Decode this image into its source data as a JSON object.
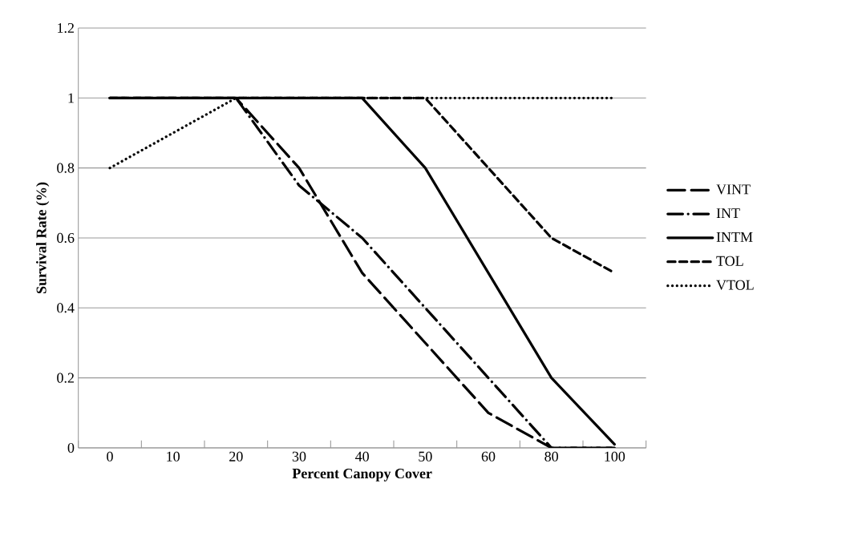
{
  "chart_data": {
    "type": "line",
    "xlabel": "Percent Canopy Cover",
    "ylabel": "Survival Rate (%)",
    "categories": [
      "0",
      "10",
      "20",
      "30",
      "40",
      "50",
      "60",
      "80",
      "100"
    ],
    "series": [
      {
        "name": "VINT",
        "color": "#000000",
        "line_style": "longdash",
        "values": [
          1,
          1,
          1,
          0.8,
          0.5,
          0.3,
          0.1,
          0,
          0
        ]
      },
      {
        "name": "INT",
        "color": "#000000",
        "line_style": "dashdot",
        "values": [
          1,
          1,
          1,
          0.75,
          0.6,
          0.4,
          0.2,
          0,
          0
        ]
      },
      {
        "name": "INTM",
        "color": "#000000",
        "line_style": "solid",
        "values": [
          1,
          1,
          1,
          1,
          1,
          0.8,
          0.5,
          0.2,
          0.01
        ]
      },
      {
        "name": "TOL",
        "color": "#000000",
        "line_style": "dashed",
        "values": [
          1,
          1,
          1,
          1,
          1,
          1,
          0.8,
          0.6,
          0.5
        ]
      },
      {
        "name": "VTOL",
        "color": "#000000",
        "line_style": "dotted",
        "values": [
          0.8,
          0.9,
          1,
          1,
          1,
          1,
          1,
          1,
          1
        ]
      }
    ],
    "ylim": [
      0,
      1.2
    ],
    "yticks": [
      0,
      0.2,
      0.4,
      0.6,
      0.8,
      1,
      1.2
    ],
    "grid": "y",
    "legend": "right",
    "marker": "none"
  }
}
